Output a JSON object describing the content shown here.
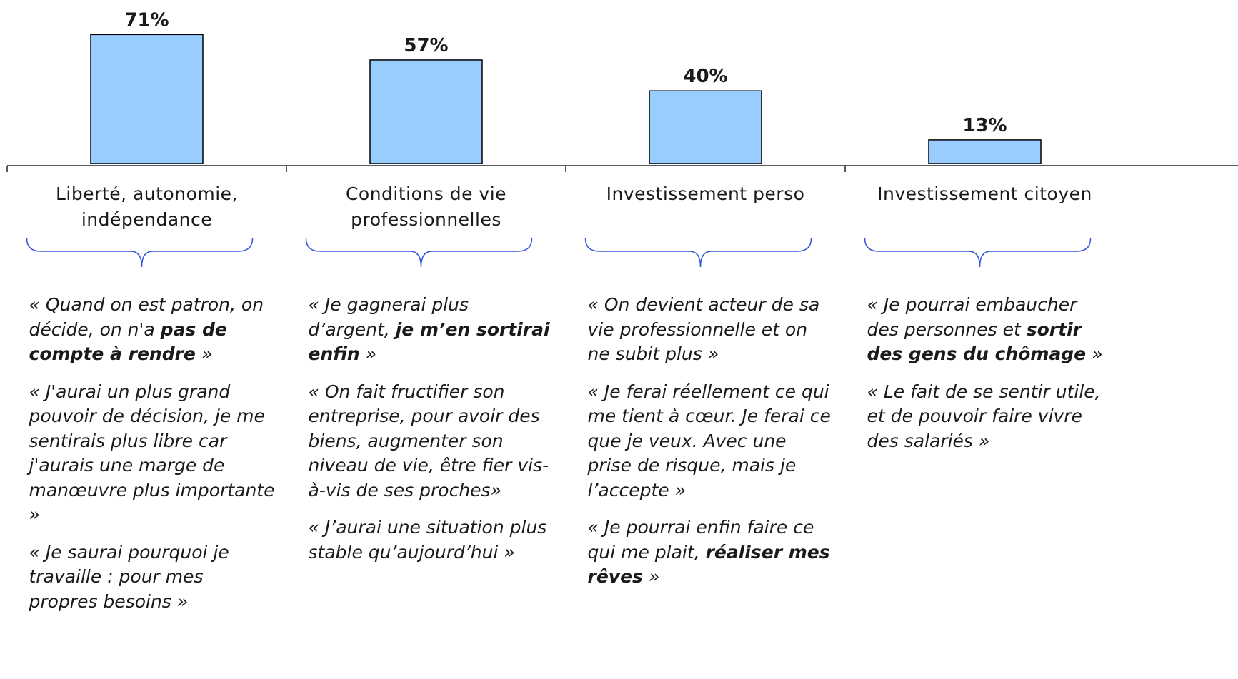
{
  "chart_data": {
    "type": "bar",
    "categories": [
      "Liberté, autonomie, indépendance",
      "Conditions de vie professionnelles",
      "Investissement perso",
      "Investissement citoyen"
    ],
    "values": [
      71,
      57,
      40,
      13
    ],
    "value_labels": [
      "71%",
      "57%",
      "40%",
      "13%"
    ],
    "color": "#99ccff",
    "ylim": [
      0,
      90
    ],
    "quotes": [
      [
        [
          {
            "text": "« Quand on est patron, on décide, on n'a "
          },
          {
            "text": "pas de compte à rendre",
            "bold": true
          },
          {
            "text": " »"
          }
        ],
        [
          {
            "text": "« J'aurai un plus grand pouvoir de décision, je me sentirais plus libre car j'aurais une marge de manœuvre plus importante »"
          }
        ],
        [
          {
            "text": "« Je saurai pourquoi je travaille : pour mes propres besoins »"
          }
        ]
      ],
      [
        [
          {
            "text": "« Je gagnerai plus d’argent, "
          },
          {
            "text": "je m’en sortirai enfin",
            "bold": true
          },
          {
            "text": " »"
          }
        ],
        [
          {
            "text": "« On fait fructifier son entreprise, pour avoir des biens, augmenter son niveau de vie, être fier vis-à-vis de ses proches»"
          }
        ],
        [
          {
            "text": "« J’aurai une situation plus stable qu’aujourd’hui »"
          }
        ]
      ],
      [
        [
          {
            "text": "« On devient acteur de sa vie professionnelle et on ne subit plus »"
          }
        ],
        [
          {
            "text": "« Je ferai réellement ce qui me tient à cœur. Je ferai ce que je veux. Avec une prise de risque, mais je l’accepte »"
          }
        ],
        [
          {
            "text": "« Je pourrai enfin faire ce qui me plait, "
          },
          {
            "text": "réaliser mes rêves",
            "bold": true
          },
          {
            "text": " »"
          }
        ]
      ],
      [
        [
          {
            "text": "« Je pourrai embaucher des personnes et "
          },
          {
            "text": "sortir des gens du chômage",
            "bold": true
          },
          {
            "text": " »"
          }
        ],
        [
          {
            "text": "« Le fait de se sentir utile, et de pouvoir faire vivre des salariés »"
          }
        ]
      ]
    ]
  }
}
